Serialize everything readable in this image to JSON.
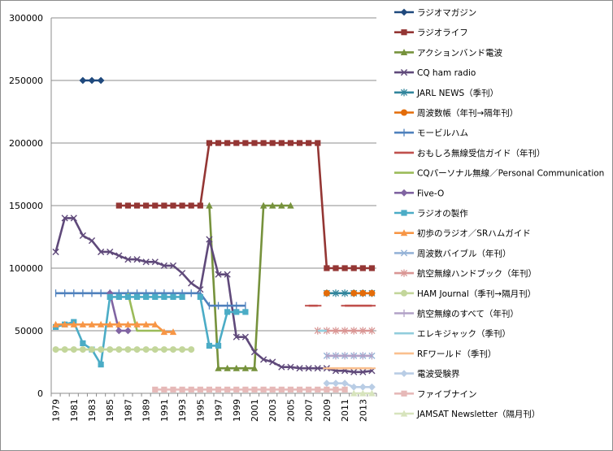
{
  "chart_data": {
    "type": "line",
    "x": [
      1979,
      1980,
      1981,
      1982,
      1983,
      1984,
      1985,
      1986,
      1987,
      1988,
      1989,
      1990,
      1991,
      1992,
      1993,
      1994,
      1995,
      1996,
      1997,
      1998,
      1999,
      2000,
      2001,
      2002,
      2003,
      2004,
      2005,
      2006,
      2007,
      2008,
      2009,
      2010,
      2011,
      2012,
      2013,
      2014
    ],
    "xtick_labels": [
      "1979",
      "1981",
      "1983",
      "1985",
      "1987",
      "1989",
      "1991",
      "1993",
      "1995",
      "1997",
      "1999",
      "2001",
      "2003",
      "2005",
      "2007",
      "2009",
      "2011",
      "2013"
    ],
    "ylim": [
      0,
      300000
    ],
    "yticks": [
      0,
      50000,
      100000,
      150000,
      200000,
      250000,
      300000
    ],
    "ytick_labels": [
      "0",
      "50000",
      "100000",
      "150000",
      "200000",
      "250000",
      "300000"
    ],
    "grid": "horizontal",
    "legend": "right",
    "series": [
      {
        "name": "ラジオマガジン",
        "color": "#1f497d",
        "marker": "diamond",
        "values": [
          null,
          null,
          null,
          250000,
          250000,
          250000,
          null,
          null,
          null,
          null,
          null,
          null,
          null,
          null,
          null,
          null,
          null,
          null,
          null,
          null,
          null,
          null,
          null,
          null,
          null,
          null,
          null,
          null,
          null,
          null,
          null,
          null,
          null,
          null,
          null,
          null
        ]
      },
      {
        "name": "ラジオライフ",
        "color": "#943634",
        "marker": "square",
        "values": [
          null,
          null,
          null,
          null,
          null,
          null,
          null,
          150000,
          150000,
          150000,
          150000,
          150000,
          150000,
          150000,
          150000,
          150000,
          150000,
          200000,
          200000,
          200000,
          200000,
          200000,
          200000,
          200000,
          200000,
          200000,
          200000,
          200000,
          200000,
          200000,
          100000,
          100000,
          100000,
          100000,
          100000,
          100000
        ]
      },
      {
        "name": "アクションバンド電波",
        "color": "#76923c",
        "marker": "triangle",
        "values": [
          null,
          null,
          null,
          null,
          null,
          null,
          null,
          null,
          null,
          null,
          null,
          null,
          null,
          null,
          null,
          null,
          null,
          150000,
          20000,
          20000,
          20000,
          20000,
          20000,
          150000,
          150000,
          150000,
          150000,
          null,
          null,
          null,
          null,
          null,
          null,
          null,
          null,
          null
        ]
      },
      {
        "name": "CQ ham radio",
        "color": "#5f497a",
        "marker": "x",
        "values": [
          113000,
          140000,
          140000,
          126000,
          122000,
          113000,
          113000,
          110000,
          107000,
          107000,
          105000,
          105000,
          102000,
          102000,
          96000,
          88000,
          83000,
          123000,
          95000,
          95000,
          45000,
          45000,
          33000,
          27000,
          25000,
          21000,
          21000,
          20000,
          20000,
          20000,
          20000,
          18000,
          18000,
          17000,
          17000,
          18000
        ]
      },
      {
        "name": "JARL NEWS（季刊）",
        "color": "#31859c",
        "marker": "star",
        "values": [
          null,
          null,
          null,
          null,
          null,
          null,
          null,
          null,
          null,
          null,
          null,
          null,
          null,
          null,
          null,
          null,
          null,
          null,
          null,
          null,
          null,
          null,
          null,
          null,
          null,
          null,
          null,
          null,
          null,
          null,
          80000,
          80000,
          80000,
          80000,
          80000,
          80000
        ]
      },
      {
        "name": "周波数帳（年刊→隔年刊）",
        "color": "#e36c09",
        "marker": "circle",
        "values": [
          null,
          null,
          null,
          null,
          null,
          null,
          null,
          null,
          null,
          null,
          null,
          null,
          null,
          null,
          null,
          null,
          null,
          null,
          null,
          null,
          null,
          null,
          null,
          null,
          null,
          null,
          null,
          null,
          null,
          null,
          80000,
          null,
          null,
          80000,
          80000,
          80000
        ]
      },
      {
        "name": "モービルハム",
        "color": "#4f81bd",
        "marker": "plus",
        "values": [
          80000,
          80000,
          80000,
          80000,
          80000,
          80000,
          80000,
          80000,
          80000,
          80000,
          80000,
          80000,
          80000,
          80000,
          80000,
          80000,
          80000,
          70000,
          70000,
          70000,
          70000,
          70000,
          null,
          null,
          null,
          null,
          null,
          null,
          null,
          null,
          null,
          null,
          null,
          null,
          null,
          null
        ]
      },
      {
        "name": "おもしろ無線受信ガイド（年刊）",
        "color": "#c0504d",
        "marker": "dash",
        "values": [
          null,
          null,
          null,
          null,
          null,
          null,
          null,
          null,
          null,
          null,
          null,
          null,
          null,
          null,
          null,
          null,
          null,
          null,
          null,
          null,
          null,
          null,
          null,
          null,
          null,
          null,
          null,
          null,
          70000,
          70000,
          null,
          null,
          70000,
          70000,
          70000,
          70000
        ]
      },
      {
        "name": "CQパーソナル無線／Personal Communication",
        "color": "#9bbb59",
        "marker": "none",
        "values": [
          null,
          null,
          null,
          null,
          null,
          null,
          null,
          null,
          80000,
          50000,
          50000,
          50000,
          50000,
          null,
          null,
          null,
          null,
          null,
          null,
          null,
          null,
          null,
          null,
          null,
          null,
          null,
          null,
          null,
          null,
          null,
          null,
          null,
          null,
          null,
          null,
          null
        ]
      },
      {
        "name": "Five-O",
        "color": "#8064a2",
        "marker": "diamond",
        "values": [
          null,
          null,
          null,
          null,
          null,
          null,
          80000,
          50000,
          50000,
          null,
          null,
          null,
          null,
          null,
          null,
          null,
          null,
          null,
          null,
          null,
          null,
          null,
          null,
          null,
          null,
          null,
          null,
          null,
          null,
          null,
          null,
          null,
          null,
          null,
          null,
          null
        ]
      },
      {
        "name": "ラジオの製作",
        "color": "#4bacc6",
        "marker": "square",
        "values": [
          53000,
          55000,
          57000,
          40000,
          35000,
          23000,
          77000,
          77000,
          77000,
          77000,
          77000,
          77000,
          77000,
          77000,
          77000,
          null,
          77000,
          38000,
          38000,
          65000,
          65000,
          65000,
          null,
          null,
          null,
          null,
          null,
          null,
          null,
          null,
          null,
          null,
          null,
          null,
          null,
          null
        ]
      },
      {
        "name": "初歩のラジオ／SRハムガイド",
        "color": "#f79646",
        "marker": "triangle",
        "values": [
          55000,
          55000,
          55000,
          55000,
          55000,
          55000,
          55000,
          55000,
          55000,
          55000,
          55000,
          55000,
          49000,
          49000,
          null,
          null,
          null,
          null,
          null,
          null,
          null,
          null,
          null,
          null,
          null,
          null,
          null,
          null,
          null,
          null,
          null,
          null,
          null,
          null,
          null,
          null
        ]
      },
      {
        "name": "周波数バイブル（年刊）",
        "color": "#95b3d7",
        "marker": "x",
        "values": [
          null,
          null,
          null,
          null,
          null,
          null,
          null,
          null,
          null,
          null,
          null,
          null,
          null,
          null,
          null,
          null,
          null,
          null,
          null,
          null,
          null,
          null,
          null,
          null,
          null,
          null,
          null,
          null,
          null,
          null,
          30000,
          30000,
          30000,
          30000,
          30000,
          30000
        ]
      },
      {
        "name": "航空無線ハンドブック（年刊）",
        "color": "#d99694",
        "marker": "star",
        "values": [
          null,
          null,
          null,
          null,
          null,
          null,
          null,
          null,
          null,
          null,
          null,
          null,
          null,
          null,
          null,
          null,
          null,
          null,
          null,
          null,
          null,
          null,
          null,
          null,
          null,
          null,
          null,
          null,
          null,
          50000,
          50000,
          50000,
          50000,
          50000,
          50000,
          50000
        ]
      },
      {
        "name": "HAM Journal（季刊→隔月刊）",
        "color": "#c3d69b",
        "marker": "circle",
        "values": [
          35000,
          35000,
          35000,
          35000,
          35000,
          35000,
          35000,
          35000,
          35000,
          35000,
          35000,
          35000,
          35000,
          35000,
          35000,
          35000,
          null,
          null,
          null,
          null,
          null,
          null,
          null,
          null,
          null,
          null,
          null,
          null,
          null,
          null,
          null,
          null,
          null,
          null,
          null,
          null
        ]
      },
      {
        "name": "航空無線のすべて（年刊）",
        "color": "#b2a2c7",
        "marker": "plus",
        "values": [
          null,
          null,
          null,
          null,
          null,
          null,
          null,
          null,
          null,
          null,
          null,
          null,
          null,
          null,
          null,
          null,
          null,
          null,
          null,
          null,
          null,
          null,
          null,
          null,
          null,
          null,
          null,
          null,
          null,
          null,
          30000,
          30000,
          30000,
          30000,
          30000,
          30000
        ]
      },
      {
        "name": "エレキジャック（季刊）",
        "color": "#92cddc",
        "marker": "none",
        "values": [
          null,
          null,
          null,
          null,
          null,
          null,
          null,
          null,
          null,
          null,
          null,
          null,
          null,
          null,
          null,
          null,
          null,
          null,
          null,
          null,
          null,
          null,
          null,
          null,
          null,
          null,
          null,
          null,
          null,
          50000,
          50000,
          null,
          null,
          null,
          null,
          null
        ]
      },
      {
        "name": "RFワールド（季刊）",
        "color": "#fac08f",
        "marker": "dash",
        "values": [
          null,
          null,
          null,
          null,
          null,
          null,
          null,
          null,
          null,
          null,
          null,
          null,
          null,
          null,
          null,
          null,
          null,
          null,
          null,
          null,
          null,
          null,
          null,
          null,
          null,
          null,
          null,
          null,
          null,
          null,
          20000,
          20000,
          20000,
          20000,
          20000,
          20000
        ]
      },
      {
        "name": "電波受験界",
        "color": "#b9cde5",
        "marker": "diamond",
        "values": [
          null,
          null,
          null,
          null,
          null,
          null,
          null,
          null,
          null,
          null,
          null,
          null,
          null,
          null,
          null,
          null,
          null,
          null,
          null,
          null,
          null,
          null,
          null,
          null,
          null,
          null,
          null,
          null,
          null,
          null,
          8000,
          8000,
          8000,
          5000,
          5000,
          5000
        ]
      },
      {
        "name": "ファイブナイン",
        "color": "#e6b9b8",
        "marker": "square",
        "values": [
          null,
          null,
          null,
          null,
          null,
          null,
          null,
          null,
          null,
          null,
          null,
          3000,
          3000,
          3000,
          3000,
          3000,
          3000,
          3000,
          3000,
          3000,
          3000,
          3000,
          3000,
          3000,
          3000,
          3000,
          3000,
          3000,
          3000,
          3000,
          3000,
          3000,
          3000,
          null,
          null,
          null
        ]
      },
      {
        "name": "JAMSAT Newsletter（隔月刊）",
        "color": "#d7e4bd",
        "marker": "triangle",
        "values": [
          null,
          null,
          null,
          null,
          null,
          null,
          null,
          null,
          null,
          null,
          null,
          null,
          null,
          null,
          null,
          null,
          null,
          null,
          null,
          null,
          null,
          null,
          null,
          null,
          null,
          null,
          null,
          null,
          null,
          null,
          null,
          null,
          null,
          0,
          0,
          0
        ]
      }
    ]
  }
}
